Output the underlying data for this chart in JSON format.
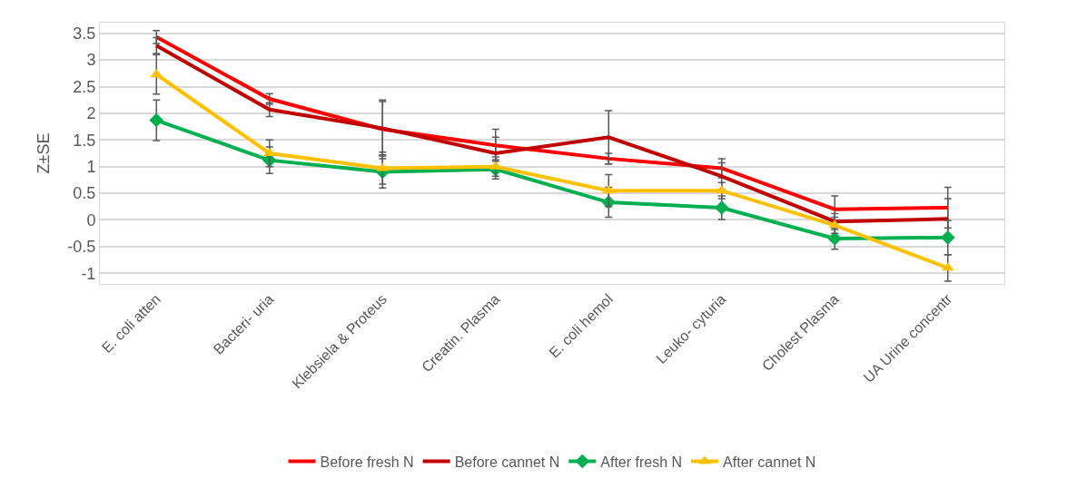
{
  "chart_data": {
    "type": "line",
    "ylabel": "Z±SE",
    "categories": [
      "E. coli atten",
      "Bacteri- uria",
      "Klebsiela & Proteus",
      "Creatin. Plasma",
      "E. coli hemol",
      "Leuko- cyturia",
      "Cholest Plasma",
      "UA Urine concentr"
    ],
    "series": [
      {
        "name": "Before fresh N",
        "color": "#ff0000",
        "marker": "none",
        "values": [
          3.43,
          2.27,
          1.7,
          1.4,
          1.15,
          0.97,
          0.2,
          0.23
        ],
        "errors": [
          0.12,
          0.1,
          0.55,
          0.3,
          0.1,
          0.18,
          0.25,
          0.38
        ]
      },
      {
        "name": "Before cannet N",
        "color": "#c00000",
        "marker": "none",
        "values": [
          3.27,
          2.07,
          1.72,
          1.25,
          1.55,
          0.82,
          -0.03,
          0.02
        ],
        "errors": [
          0.15,
          0.13,
          0.5,
          0.3,
          0.5,
          0.25,
          0.15,
          0.38
        ]
      },
      {
        "name": "After fresh N",
        "color": "#00b050",
        "marker": "diamond",
        "values": [
          1.87,
          1.12,
          0.9,
          0.95,
          0.33,
          0.23,
          -0.35,
          -0.33
        ],
        "errors": [
          0.38,
          0.25,
          0.3,
          0.18,
          0.28,
          0.22,
          0.2,
          0.32
        ]
      },
      {
        "name": "After cannet N",
        "color": "#ffc000",
        "marker": "triangle",
        "values": [
          2.73,
          1.25,
          0.97,
          1.0,
          0.55,
          0.55,
          -0.1,
          -0.9
        ],
        "errors": [
          0.37,
          0.25,
          0.3,
          0.18,
          0.3,
          0.15,
          0.15,
          0.25
        ]
      }
    ],
    "ylim": [
      -1.2,
      3.7
    ],
    "yticks": [
      -1,
      -0.5,
      0,
      0.5,
      1,
      1.5,
      2,
      2.5,
      3,
      3.5
    ],
    "grid": "y",
    "legend": "bottom"
  }
}
